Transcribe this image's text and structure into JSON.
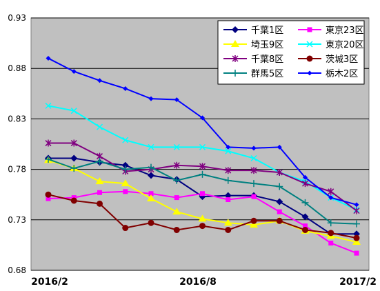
{
  "chart_data": {
    "type": "line",
    "title": "",
    "xlabel": "",
    "ylabel": "",
    "ylim": [
      0.68,
      0.93
    ],
    "yticks": [
      "0.68",
      "0.73",
      "0.78",
      "0.83",
      "0.88",
      "0.93"
    ],
    "x_tick_labels": [
      "2016/2",
      "2016/8",
      "2017/2"
    ],
    "x_points": 13,
    "grid": "horizontal",
    "plot_background": "#c0c0c0",
    "legend_position": "top-right",
    "series": [
      {
        "name": "千葉1区",
        "color": "#000080",
        "marker": "diamond",
        "values": [
          0.791,
          0.791,
          0.787,
          0.784,
          0.774,
          0.77,
          0.753,
          0.754,
          0.754,
          0.748,
          0.733,
          0.716,
          0.716
        ]
      },
      {
        "name": "東京23区",
        "color": "#ff00ff",
        "marker": "square",
        "values": [
          0.751,
          0.752,
          0.757,
          0.758,
          0.756,
          0.752,
          0.756,
          0.75,
          0.753,
          0.738,
          0.724,
          0.707,
          0.697
        ]
      },
      {
        "name": "埼玉9区",
        "color": "#ffff00",
        "marker": "triangle",
        "values": [
          0.789,
          0.781,
          0.768,
          0.766,
          0.751,
          0.738,
          0.731,
          0.727,
          0.725,
          0.729,
          0.719,
          0.714,
          0.708
        ]
      },
      {
        "name": "東京20区",
        "color": "#00ffff",
        "marker": "x",
        "values": [
          0.843,
          0.838,
          0.822,
          0.809,
          0.802,
          0.802,
          0.802,
          0.798,
          0.791,
          0.777,
          0.768,
          0.752,
          0.74
        ]
      },
      {
        "name": "千葉8区",
        "color": "#800080",
        "marker": "star",
        "values": [
          0.806,
          0.806,
          0.793,
          0.778,
          0.78,
          0.784,
          0.783,
          0.779,
          0.779,
          0.777,
          0.766,
          0.758,
          0.739
        ]
      },
      {
        "name": "茨城3区",
        "color": "#800000",
        "marker": "circle",
        "values": [
          0.755,
          0.749,
          0.746,
          0.722,
          0.727,
          0.72,
          0.724,
          0.72,
          0.729,
          0.729,
          0.72,
          0.717,
          0.712
        ]
      },
      {
        "name": "群馬5区",
        "color": "#008080",
        "marker": "plus",
        "values": [
          0.79,
          0.781,
          0.788,
          0.78,
          0.782,
          0.769,
          0.775,
          0.769,
          0.766,
          0.763,
          0.747,
          0.727,
          0.726
        ]
      },
      {
        "name": "栃木2区",
        "color": "#0000ff",
        "marker": "diamond-small",
        "values": [
          0.89,
          0.877,
          0.868,
          0.86,
          0.85,
          0.849,
          0.831,
          0.802,
          0.801,
          0.802,
          0.772,
          0.752,
          0.745
        ]
      }
    ]
  }
}
